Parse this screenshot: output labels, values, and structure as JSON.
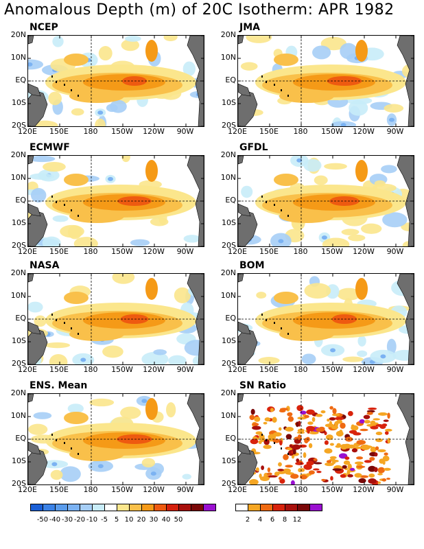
{
  "title": "Anomalous Depth (m) of 20C Isotherm: APR 1982",
  "lat_labels": [
    "20N",
    "10N",
    "EQ",
    "10S",
    "20S"
  ],
  "lon_labels": [
    "120E",
    "150E",
    "180",
    "150W",
    "120W",
    "90W"
  ],
  "panels": [
    {
      "name": "NCEP"
    },
    {
      "name": "JMA"
    },
    {
      "name": "ECMWF"
    },
    {
      "name": "GFDL"
    },
    {
      "name": "NASA"
    },
    {
      "name": "BOM"
    },
    {
      "name": "ENS. Mean"
    },
    {
      "name": "SN Ratio"
    }
  ],
  "colorbar_anomaly": {
    "labels": [
      "-50",
      "-40",
      "-30",
      "-20",
      "-10",
      "-5",
      "5",
      "10",
      "20",
      "30",
      "40",
      "50"
    ],
    "colors": [
      "#1a5fd6",
      "#3b82e6",
      "#5a9cec",
      "#7bb2f2",
      "#a6cef6",
      "#c8ecf8",
      "#ffffff",
      "#fbe68c",
      "#f9c04a",
      "#f59a17",
      "#ee5a10",
      "#d4200c",
      "#a8100c",
      "#7a0808",
      "#9a10d0"
    ]
  },
  "colorbar_sn": {
    "labels": [
      "2",
      "4",
      "6",
      "8",
      "12"
    ],
    "colors": [
      "#ffffff",
      "#f5a623",
      "#ef6a12",
      "#d8230c",
      "#a8100c",
      "#7a0808",
      "#9a10d0"
    ]
  }
}
